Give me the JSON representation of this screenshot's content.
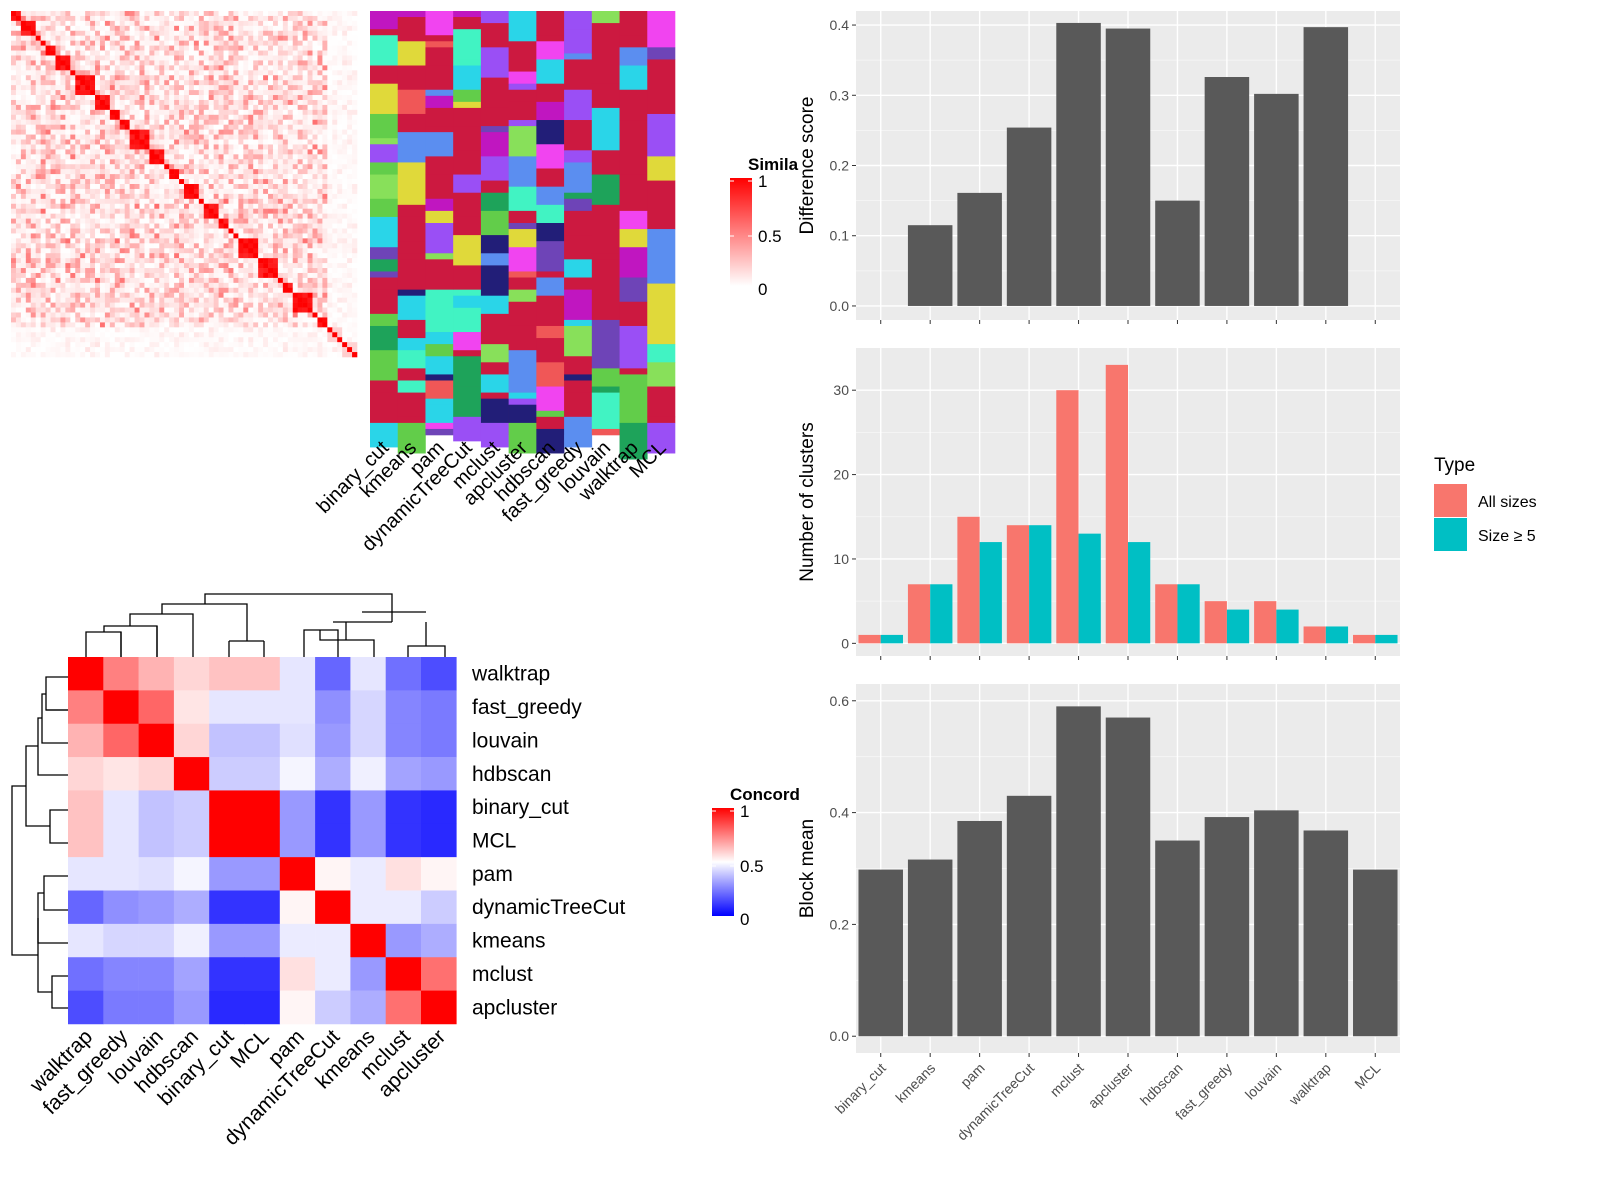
{
  "similarity_heatmap": {
    "legend_title": "Simila",
    "legend_ticks": [
      "1",
      "0.5",
      "0"
    ],
    "methods": [
      "binary_cut",
      "kmeans",
      "pam",
      "dynamicTreeCut",
      "mclust",
      "apcluster",
      "hdbscan",
      "fast_greedy",
      "louvain",
      "walktrap",
      "MCL"
    ]
  },
  "concordance_heatmap": {
    "legend_title": "Concord",
    "legend_ticks": [
      "1",
      "0.5",
      "0"
    ],
    "rows": [
      "walktrap",
      "fast_greedy",
      "louvain",
      "hdbscan",
      "binary_cut",
      "MCL",
      "pam",
      "dynamicTreeCut",
      "kmeans",
      "mclust",
      "apcluster"
    ],
    "cols": [
      "walktrap",
      "fast_greedy",
      "louvain",
      "hdbscan",
      "binary_cut",
      "MCL",
      "pam",
      "dynamicTreeCut",
      "kmeans",
      "mclust",
      "apcluster"
    ],
    "values": [
      [
        1.0,
        0.75,
        0.65,
        0.58,
        0.62,
        0.62,
        0.45,
        0.2,
        0.45,
        0.22,
        0.15
      ],
      [
        0.75,
        1.0,
        0.8,
        0.55,
        0.45,
        0.45,
        0.45,
        0.28,
        0.42,
        0.26,
        0.24
      ],
      [
        0.65,
        0.8,
        1.0,
        0.58,
        0.38,
        0.38,
        0.44,
        0.3,
        0.42,
        0.26,
        0.24
      ],
      [
        0.58,
        0.55,
        0.58,
        1.0,
        0.4,
        0.4,
        0.48,
        0.34,
        0.47,
        0.32,
        0.3
      ],
      [
        0.62,
        0.45,
        0.38,
        0.4,
        1.0,
        1.0,
        0.3,
        0.1,
        0.3,
        0.1,
        0.08
      ],
      [
        0.62,
        0.45,
        0.38,
        0.4,
        1.0,
        1.0,
        0.3,
        0.1,
        0.3,
        0.1,
        0.08
      ],
      [
        0.45,
        0.45,
        0.44,
        0.48,
        0.3,
        0.3,
        1.0,
        0.52,
        0.46,
        0.56,
        0.52
      ],
      [
        0.2,
        0.28,
        0.3,
        0.34,
        0.1,
        0.1,
        0.52,
        1.0,
        0.46,
        0.46,
        0.4
      ],
      [
        0.45,
        0.42,
        0.42,
        0.47,
        0.3,
        0.3,
        0.46,
        0.46,
        1.0,
        0.3,
        0.34
      ],
      [
        0.22,
        0.26,
        0.26,
        0.32,
        0.1,
        0.1,
        0.56,
        0.46,
        0.3,
        1.0,
        0.78
      ],
      [
        0.15,
        0.24,
        0.24,
        0.3,
        0.08,
        0.08,
        0.52,
        0.4,
        0.34,
        0.78,
        1.0
      ]
    ]
  },
  "chart_data": [
    {
      "type": "bar",
      "ylabel": "Difference score",
      "categories": [
        "binary_cut",
        "kmeans",
        "pam",
        "dynamicTreeCut",
        "mclust",
        "apcluster",
        "hdbscan",
        "fast_greedy",
        "louvain",
        "walktrap",
        "MCL"
      ],
      "values": [
        0.0,
        0.115,
        0.161,
        0.254,
        0.403,
        0.395,
        0.15,
        0.326,
        0.302,
        0.397,
        0.0
      ],
      "ylim": [
        -0.02,
        0.42
      ],
      "yticks": [
        "0.0",
        "0.1",
        "0.2",
        "0.3",
        "0.4"
      ],
      "grid": true
    },
    {
      "type": "bar",
      "ylabel": "Number of clusters",
      "categories": [
        "binary_cut",
        "kmeans",
        "pam",
        "dynamicTreeCut",
        "mclust",
        "apcluster",
        "hdbscan",
        "fast_greedy",
        "louvain",
        "walktrap",
        "MCL"
      ],
      "series": [
        {
          "name": "All sizes",
          "color": "#F8766D",
          "values": [
            1,
            7,
            15,
            14,
            30,
            33,
            7,
            5,
            5,
            2,
            1
          ]
        },
        {
          "name": "Size ≥ 5",
          "color": "#00BFC4",
          "values": [
            1,
            7,
            12,
            14,
            13,
            12,
            7,
            4,
            4,
            2,
            1
          ]
        }
      ],
      "legend_title": "Type",
      "legend_position": "right",
      "ylim": [
        -1.5,
        35
      ],
      "yticks": [
        "0",
        "10",
        "20",
        "30"
      ],
      "grid": true
    },
    {
      "type": "bar",
      "ylabel": "Block mean",
      "categories": [
        "binary_cut",
        "kmeans",
        "pam",
        "dynamicTreeCut",
        "mclust",
        "apcluster",
        "hdbscan",
        "fast_greedy",
        "louvain",
        "walktrap",
        "MCL"
      ],
      "values": [
        0.298,
        0.316,
        0.385,
        0.43,
        0.59,
        0.57,
        0.35,
        0.392,
        0.404,
        0.368,
        0.298
      ],
      "ylim": [
        -0.03,
        0.63
      ],
      "yticks": [
        "0.0",
        "0.2",
        "0.4",
        "0.6"
      ],
      "grid": true
    }
  ]
}
